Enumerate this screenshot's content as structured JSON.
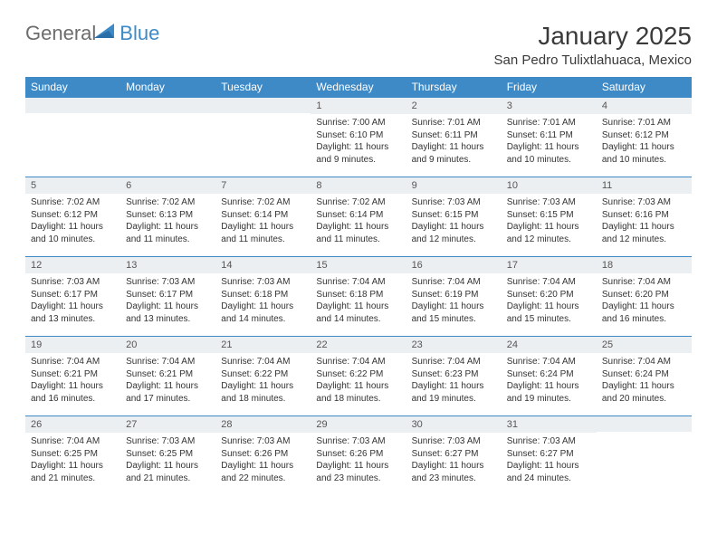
{
  "logo": {
    "general": "General",
    "blue": "Blue"
  },
  "title": "January 2025",
  "location": "San Pedro Tulixtlahuaca, Mexico",
  "colors": {
    "header_bg": "#3d8ac7",
    "header_text": "#ffffff",
    "daynum_bg": "#eceff2",
    "border": "#3d8ac7",
    "body_text": "#333333",
    "logo_gray": "#6d6d6d",
    "logo_blue": "#3d8ac7"
  },
  "day_headers": [
    "Sunday",
    "Monday",
    "Tuesday",
    "Wednesday",
    "Thursday",
    "Friday",
    "Saturday"
  ],
  "weeks": [
    [
      {
        "day": "",
        "sunrise": "",
        "sunset": "",
        "daylight": ""
      },
      {
        "day": "",
        "sunrise": "",
        "sunset": "",
        "daylight": ""
      },
      {
        "day": "",
        "sunrise": "",
        "sunset": "",
        "daylight": ""
      },
      {
        "day": "1",
        "sunrise": "Sunrise: 7:00 AM",
        "sunset": "Sunset: 6:10 PM",
        "daylight": "Daylight: 11 hours and 9 minutes."
      },
      {
        "day": "2",
        "sunrise": "Sunrise: 7:01 AM",
        "sunset": "Sunset: 6:11 PM",
        "daylight": "Daylight: 11 hours and 9 minutes."
      },
      {
        "day": "3",
        "sunrise": "Sunrise: 7:01 AM",
        "sunset": "Sunset: 6:11 PM",
        "daylight": "Daylight: 11 hours and 10 minutes."
      },
      {
        "day": "4",
        "sunrise": "Sunrise: 7:01 AM",
        "sunset": "Sunset: 6:12 PM",
        "daylight": "Daylight: 11 hours and 10 minutes."
      }
    ],
    [
      {
        "day": "5",
        "sunrise": "Sunrise: 7:02 AM",
        "sunset": "Sunset: 6:12 PM",
        "daylight": "Daylight: 11 hours and 10 minutes."
      },
      {
        "day": "6",
        "sunrise": "Sunrise: 7:02 AM",
        "sunset": "Sunset: 6:13 PM",
        "daylight": "Daylight: 11 hours and 11 minutes."
      },
      {
        "day": "7",
        "sunrise": "Sunrise: 7:02 AM",
        "sunset": "Sunset: 6:14 PM",
        "daylight": "Daylight: 11 hours and 11 minutes."
      },
      {
        "day": "8",
        "sunrise": "Sunrise: 7:02 AM",
        "sunset": "Sunset: 6:14 PM",
        "daylight": "Daylight: 11 hours and 11 minutes."
      },
      {
        "day": "9",
        "sunrise": "Sunrise: 7:03 AM",
        "sunset": "Sunset: 6:15 PM",
        "daylight": "Daylight: 11 hours and 12 minutes."
      },
      {
        "day": "10",
        "sunrise": "Sunrise: 7:03 AM",
        "sunset": "Sunset: 6:15 PM",
        "daylight": "Daylight: 11 hours and 12 minutes."
      },
      {
        "day": "11",
        "sunrise": "Sunrise: 7:03 AM",
        "sunset": "Sunset: 6:16 PM",
        "daylight": "Daylight: 11 hours and 12 minutes."
      }
    ],
    [
      {
        "day": "12",
        "sunrise": "Sunrise: 7:03 AM",
        "sunset": "Sunset: 6:17 PM",
        "daylight": "Daylight: 11 hours and 13 minutes."
      },
      {
        "day": "13",
        "sunrise": "Sunrise: 7:03 AM",
        "sunset": "Sunset: 6:17 PM",
        "daylight": "Daylight: 11 hours and 13 minutes."
      },
      {
        "day": "14",
        "sunrise": "Sunrise: 7:03 AM",
        "sunset": "Sunset: 6:18 PM",
        "daylight": "Daylight: 11 hours and 14 minutes."
      },
      {
        "day": "15",
        "sunrise": "Sunrise: 7:04 AM",
        "sunset": "Sunset: 6:18 PM",
        "daylight": "Daylight: 11 hours and 14 minutes."
      },
      {
        "day": "16",
        "sunrise": "Sunrise: 7:04 AM",
        "sunset": "Sunset: 6:19 PM",
        "daylight": "Daylight: 11 hours and 15 minutes."
      },
      {
        "day": "17",
        "sunrise": "Sunrise: 7:04 AM",
        "sunset": "Sunset: 6:20 PM",
        "daylight": "Daylight: 11 hours and 15 minutes."
      },
      {
        "day": "18",
        "sunrise": "Sunrise: 7:04 AM",
        "sunset": "Sunset: 6:20 PM",
        "daylight": "Daylight: 11 hours and 16 minutes."
      }
    ],
    [
      {
        "day": "19",
        "sunrise": "Sunrise: 7:04 AM",
        "sunset": "Sunset: 6:21 PM",
        "daylight": "Daylight: 11 hours and 16 minutes."
      },
      {
        "day": "20",
        "sunrise": "Sunrise: 7:04 AM",
        "sunset": "Sunset: 6:21 PM",
        "daylight": "Daylight: 11 hours and 17 minutes."
      },
      {
        "day": "21",
        "sunrise": "Sunrise: 7:04 AM",
        "sunset": "Sunset: 6:22 PM",
        "daylight": "Daylight: 11 hours and 18 minutes."
      },
      {
        "day": "22",
        "sunrise": "Sunrise: 7:04 AM",
        "sunset": "Sunset: 6:22 PM",
        "daylight": "Daylight: 11 hours and 18 minutes."
      },
      {
        "day": "23",
        "sunrise": "Sunrise: 7:04 AM",
        "sunset": "Sunset: 6:23 PM",
        "daylight": "Daylight: 11 hours and 19 minutes."
      },
      {
        "day": "24",
        "sunrise": "Sunrise: 7:04 AM",
        "sunset": "Sunset: 6:24 PM",
        "daylight": "Daylight: 11 hours and 19 minutes."
      },
      {
        "day": "25",
        "sunrise": "Sunrise: 7:04 AM",
        "sunset": "Sunset: 6:24 PM",
        "daylight": "Daylight: 11 hours and 20 minutes."
      }
    ],
    [
      {
        "day": "26",
        "sunrise": "Sunrise: 7:04 AM",
        "sunset": "Sunset: 6:25 PM",
        "daylight": "Daylight: 11 hours and 21 minutes."
      },
      {
        "day": "27",
        "sunrise": "Sunrise: 7:03 AM",
        "sunset": "Sunset: 6:25 PM",
        "daylight": "Daylight: 11 hours and 21 minutes."
      },
      {
        "day": "28",
        "sunrise": "Sunrise: 7:03 AM",
        "sunset": "Sunset: 6:26 PM",
        "daylight": "Daylight: 11 hours and 22 minutes."
      },
      {
        "day": "29",
        "sunrise": "Sunrise: 7:03 AM",
        "sunset": "Sunset: 6:26 PM",
        "daylight": "Daylight: 11 hours and 23 minutes."
      },
      {
        "day": "30",
        "sunrise": "Sunrise: 7:03 AM",
        "sunset": "Sunset: 6:27 PM",
        "daylight": "Daylight: 11 hours and 23 minutes."
      },
      {
        "day": "31",
        "sunrise": "Sunrise: 7:03 AM",
        "sunset": "Sunset: 6:27 PM",
        "daylight": "Daylight: 11 hours and 24 minutes."
      },
      {
        "day": "",
        "sunrise": "",
        "sunset": "",
        "daylight": ""
      }
    ]
  ]
}
